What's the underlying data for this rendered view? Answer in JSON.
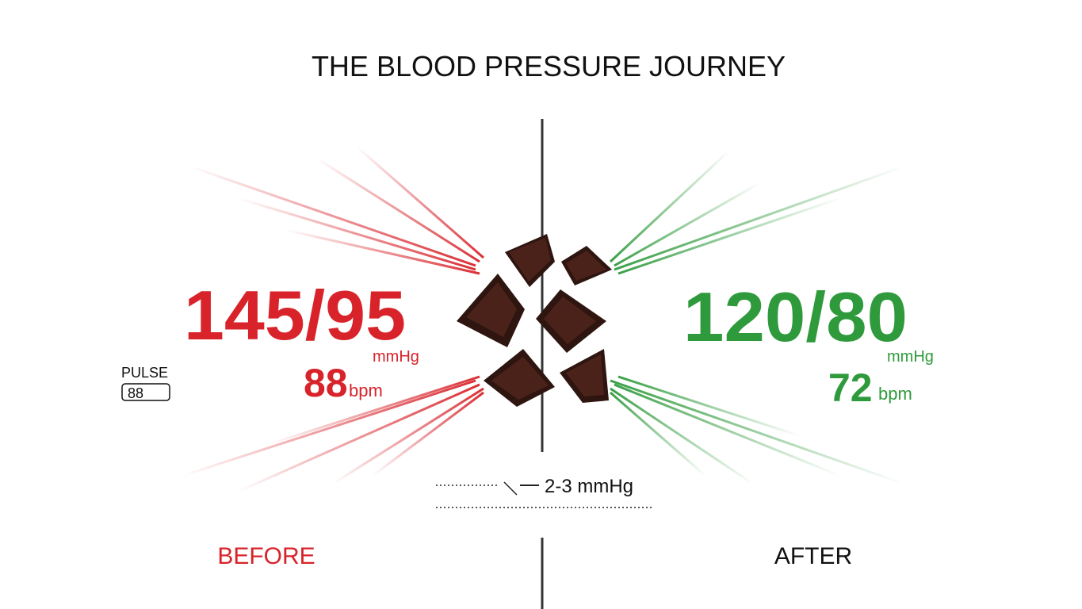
{
  "title": "THE BLOOD PRESSURE JOURNEY",
  "before": {
    "reading": "145/95",
    "unit": "mmHg",
    "pulse": "88",
    "pulse_unit": "bpm",
    "label": "BEFORE"
  },
  "after": {
    "reading": "120/80",
    "unit": "mmHg",
    "pulse": "72",
    "pulse_unit": "bpm",
    "label": "AFTER"
  },
  "pulse_box": {
    "label": "PULSE",
    "value": "88"
  },
  "change": "2-3 mmHg"
}
